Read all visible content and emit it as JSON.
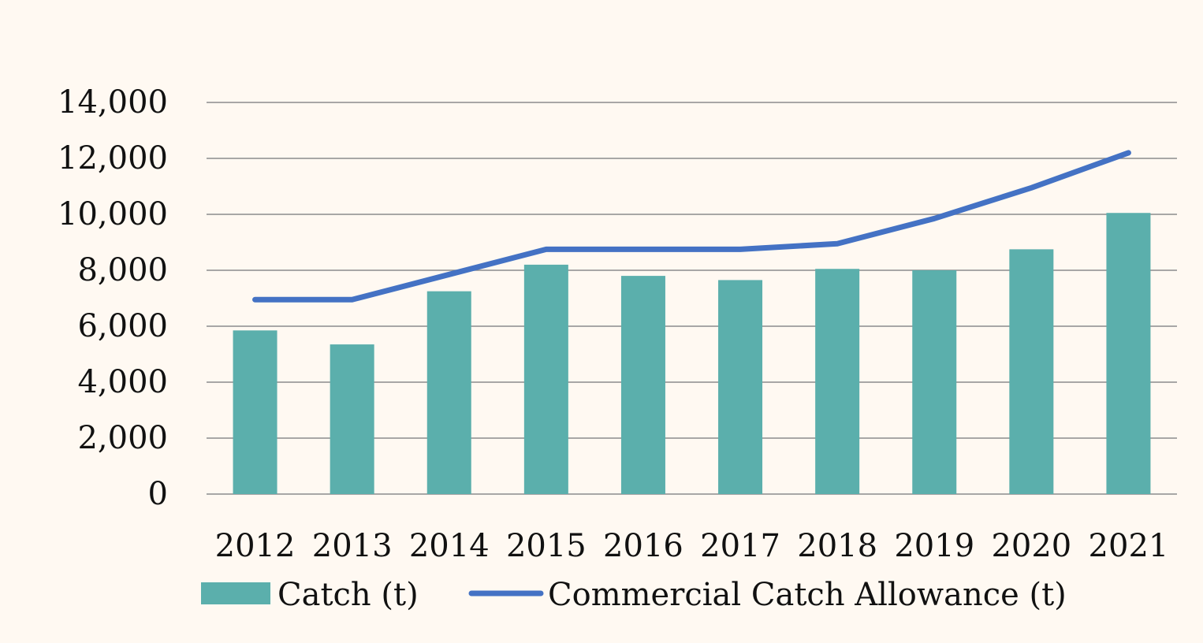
{
  "chart_data": {
    "type": "bar",
    "categories": [
      "2012",
      "2013",
      "2014",
      "2015",
      "2016",
      "2017",
      "2018",
      "2019",
      "2020",
      "2021"
    ],
    "series": [
      {
        "name": "Catch (t)",
        "type": "bar",
        "color": "#5bafac",
        "values": [
          5850,
          5350,
          7250,
          8200,
          7800,
          7650,
          8050,
          8000,
          8750,
          10050
        ]
      },
      {
        "name": "Commercial Catch Allowance (t)",
        "type": "line",
        "color": "#4472c4",
        "values": [
          6950,
          6950,
          7850,
          8750,
          8750,
          8750,
          8950,
          9850,
          10950,
          12200
        ]
      }
    ],
    "ylim": [
      0,
      14000
    ],
    "yticks": [
      "0",
      "2,000",
      "4,000",
      "6,000",
      "8,000",
      "10,000",
      "12,000",
      "14,000"
    ],
    "grid": true,
    "legend_position": "bottom",
    "title": "",
    "xlabel": "",
    "ylabel": ""
  }
}
